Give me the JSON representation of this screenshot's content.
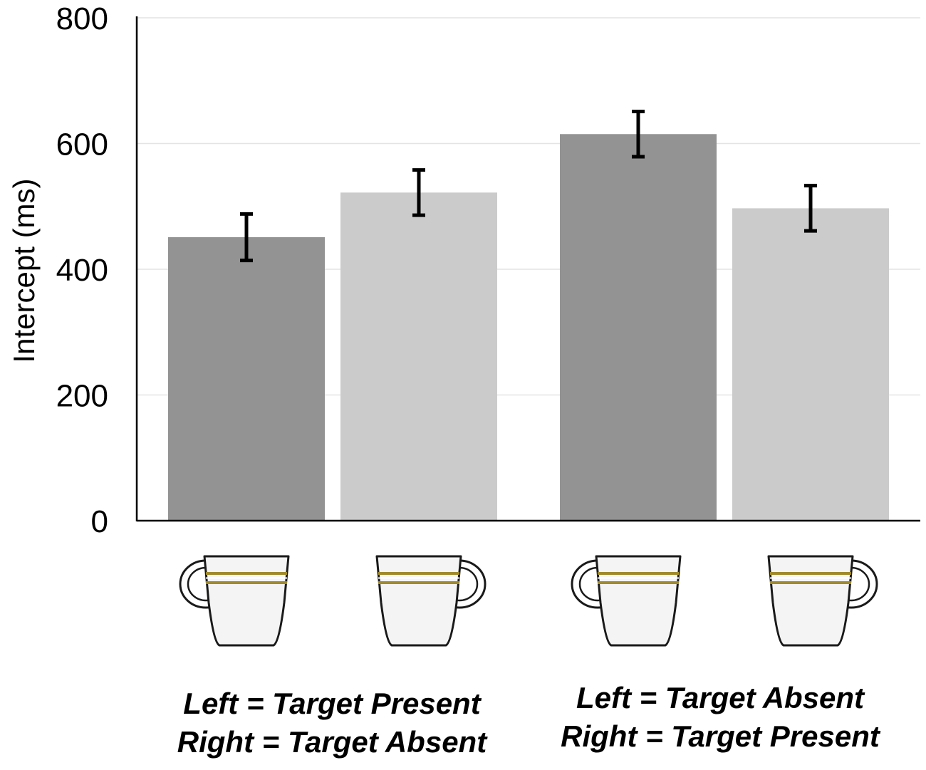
{
  "chart_data": {
    "type": "bar",
    "title": "",
    "xlabel": "",
    "ylabel": "Intercept (ms)",
    "ylim": [
      0,
      800
    ],
    "yticks": [
      0,
      200,
      400,
      600,
      800
    ],
    "ytick_labels": [
      "0",
      "200",
      "400",
      "600",
      "800"
    ],
    "grid": true,
    "legend": "none",
    "groups": [
      {
        "caption_lines": [
          "Left = Target Present",
          "Right = Target Absent"
        ],
        "bars": [
          {
            "value": 451,
            "error": 37,
            "color": "#939393",
            "cup_handle": "left"
          },
          {
            "value": 522,
            "error": 36,
            "color": "#cbcbcb",
            "cup_handle": "right"
          }
        ]
      },
      {
        "caption_lines": [
          "Left = Target Absent",
          "Right = Target Present"
        ],
        "bars": [
          {
            "value": 615,
            "error": 36,
            "color": "#939393",
            "cup_handle": "left"
          },
          {
            "value": 497,
            "error": 36,
            "color": "#cbcbcb",
            "cup_handle": "right"
          }
        ]
      }
    ]
  },
  "colors": {
    "grid": "#e4e4e4",
    "axis": "#000000",
    "error_bar": "#000000",
    "cup_stripe": "#a08a2c",
    "cup_body": "#f4f4f4"
  }
}
